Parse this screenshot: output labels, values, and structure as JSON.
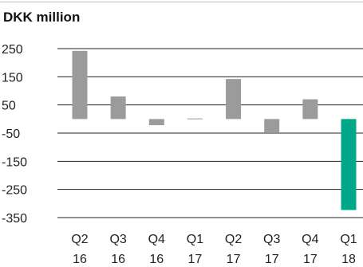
{
  "chart_data": {
    "type": "bar",
    "title": "DKK million",
    "categories": [
      "Q2 16",
      "Q3 16",
      "Q4 16",
      "Q1 17",
      "Q2 17",
      "Q3 17",
      "Q4 17",
      "Q1 18"
    ],
    "x_tick_labels": [
      [
        "Q2",
        "16"
      ],
      [
        "Q3",
        "16"
      ],
      [
        "Q4",
        "16"
      ],
      [
        "Q1",
        "17"
      ],
      [
        "Q2",
        "17"
      ],
      [
        "Q3",
        "17"
      ],
      [
        "Q4",
        "17"
      ],
      [
        "Q1",
        "18"
      ]
    ],
    "values": [
      242,
      80,
      -22,
      2,
      142,
      -47,
      70,
      -323
    ],
    "bar_colors": [
      "#9b9b9b",
      "#9b9b9b",
      "#9b9b9b",
      "#9b9b9b",
      "#9b9b9b",
      "#9b9b9b",
      "#9b9b9b",
      "#00a88a"
    ],
    "ylim": [
      -350,
      250
    ],
    "yticks": [
      250,
      150,
      50,
      -50,
      -150,
      -250,
      -350
    ],
    "grid": true,
    "xlabel": "",
    "ylabel": ""
  }
}
